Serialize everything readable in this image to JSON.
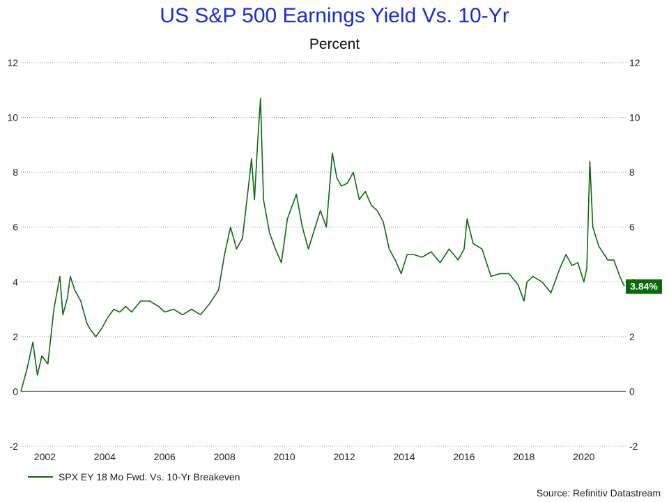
{
  "title": "US S&P 500 Earnings Yield Vs. 10-Yr",
  "subtitle": "Percent",
  "source": "Source: Refinitiv Datastream",
  "colors": {
    "title": "#1a2bd6",
    "series": "#0a6a0a",
    "grid": "#9a9a9a",
    "label_bg": "#0a6a0a"
  },
  "chart_data": {
    "type": "line",
    "title": "US S&P 500 Earnings Yield Vs. 10-Yr",
    "subtitle": "Percent",
    "xlabel": "",
    "ylabel": "",
    "ylim": [
      -2,
      12
    ],
    "xlim": [
      2001.2,
      2021.4
    ],
    "y_ticks": [
      -2,
      0,
      2,
      4,
      6,
      8,
      10,
      12
    ],
    "x_ticks": [
      "2002",
      "2004",
      "2006",
      "2008",
      "2010",
      "2012",
      "2014",
      "2016",
      "2018",
      "2020"
    ],
    "grid": "horizontal dotted",
    "legend_position": "bottom-left",
    "last_value_label": "3.84%",
    "series": [
      {
        "name": "SPX EY 18 Mo Fwd. Vs. 10-Yr Breakeven",
        "x": [
          2001.2,
          2001.4,
          2001.6,
          2001.75,
          2001.9,
          2002.1,
          2002.3,
          2002.5,
          2002.6,
          2002.75,
          2002.85,
          2003.0,
          2003.2,
          2003.4,
          2003.5,
          2003.7,
          2003.9,
          2004.1,
          2004.3,
          2004.5,
          2004.7,
          2004.9,
          2005.2,
          2005.5,
          2005.8,
          2006.0,
          2006.3,
          2006.6,
          2006.9,
          2007.2,
          2007.5,
          2007.8,
          2008.0,
          2008.2,
          2008.4,
          2008.6,
          2008.8,
          2008.9,
          2009.0,
          2009.1,
          2009.2,
          2009.3,
          2009.5,
          2009.7,
          2009.9,
          2010.1,
          2010.4,
          2010.6,
          2010.8,
          2011.0,
          2011.2,
          2011.4,
          2011.6,
          2011.75,
          2011.9,
          2012.1,
          2012.3,
          2012.5,
          2012.7,
          2012.9,
          2013.1,
          2013.3,
          2013.5,
          2013.7,
          2013.9,
          2014.1,
          2014.3,
          2014.6,
          2014.9,
          2015.2,
          2015.5,
          2015.8,
          2016.0,
          2016.1,
          2016.3,
          2016.6,
          2016.9,
          2017.2,
          2017.5,
          2017.8,
          2018.0,
          2018.1,
          2018.3,
          2018.6,
          2018.9,
          2019.2,
          2019.4,
          2019.6,
          2019.8,
          2020.0,
          2020.1,
          2020.2,
          2020.3,
          2020.5,
          2020.8,
          2021.0,
          2021.2,
          2021.35
        ],
        "values": [
          0.0,
          0.8,
          1.8,
          0.6,
          1.3,
          1.0,
          3.0,
          4.2,
          2.8,
          3.4,
          4.2,
          3.7,
          3.3,
          2.5,
          2.3,
          2.0,
          2.3,
          2.7,
          3.0,
          2.9,
          3.1,
          2.9,
          3.3,
          3.3,
          3.1,
          2.9,
          3.0,
          2.8,
          3.0,
          2.8,
          3.2,
          3.7,
          5.0,
          6.0,
          5.2,
          5.6,
          7.5,
          8.5,
          7.0,
          9.0,
          10.7,
          7.0,
          5.8,
          5.2,
          4.7,
          6.3,
          7.2,
          6.0,
          5.2,
          5.9,
          6.6,
          6.0,
          8.7,
          7.8,
          7.5,
          7.6,
          8.0,
          7.0,
          7.3,
          6.8,
          6.6,
          6.2,
          5.2,
          4.8,
          4.3,
          5.0,
          5.0,
          4.9,
          5.1,
          4.7,
          5.2,
          4.8,
          5.2,
          6.3,
          5.4,
          5.2,
          4.2,
          4.3,
          4.3,
          3.9,
          3.3,
          4.0,
          4.2,
          4.0,
          3.6,
          4.5,
          5.0,
          4.6,
          4.7,
          4.0,
          4.5,
          8.4,
          6.0,
          5.3,
          4.8,
          4.8,
          4.2,
          3.84
        ]
      }
    ]
  }
}
